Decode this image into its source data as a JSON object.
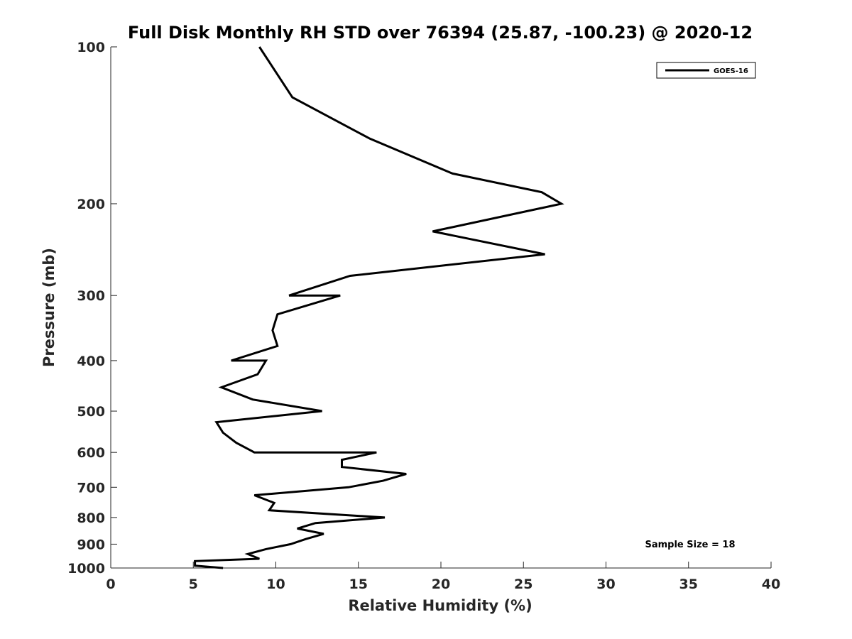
{
  "chart_data": {
    "type": "line",
    "title": "Full Disk Monthly RH STD over 76394 (25.87, -100.23) @ 2020-12",
    "xlabel": "Relative Humidity (%)",
    "ylabel": "Pressure (mb)",
    "xlim": [
      0,
      40
    ],
    "ylim": [
      100,
      1000
    ],
    "y_scale": "log",
    "y_reversed": true,
    "x_ticks": [
      "0",
      "5",
      "10",
      "15",
      "20",
      "25",
      "30",
      "35",
      "40"
    ],
    "y_ticks": [
      "100",
      "200",
      "300",
      "400",
      "500",
      "600",
      "700",
      "800",
      "900",
      "1000"
    ],
    "grid": false,
    "legend_position": "top-right",
    "annotation": "Sample Size = 18",
    "series": [
      {
        "name": "GOES-16",
        "color": "#000000",
        "points": [
          [
            9.0,
            100
          ],
          [
            11.0,
            125
          ],
          [
            15.7,
            150
          ],
          [
            20.7,
            175
          ],
          [
            26.1,
            190
          ],
          [
            27.3,
            200
          ],
          [
            19.5,
            226
          ],
          [
            26.3,
            250
          ],
          [
            14.5,
            275
          ],
          [
            10.8,
            300
          ],
          [
            13.9,
            300
          ],
          [
            10.1,
            326
          ],
          [
            9.8,
            350
          ],
          [
            10.1,
            375
          ],
          [
            7.3,
            400
          ],
          [
            9.4,
            400
          ],
          [
            8.9,
            425
          ],
          [
            6.7,
            450
          ],
          [
            8.6,
            475
          ],
          [
            12.8,
            500
          ],
          [
            6.4,
            525
          ],
          [
            6.8,
            550
          ],
          [
            7.6,
            575
          ],
          [
            8.7,
            600
          ],
          [
            16.1,
            600
          ],
          [
            14.0,
            620
          ],
          [
            14.0,
            640
          ],
          [
            17.9,
            660
          ],
          [
            16.5,
            680
          ],
          [
            14.4,
            700
          ],
          [
            8.7,
            725
          ],
          [
            9.9,
            750
          ],
          [
            9.6,
            775
          ],
          [
            16.6,
            800
          ],
          [
            12.4,
            820
          ],
          [
            11.3,
            840
          ],
          [
            12.9,
            860
          ],
          [
            11.8,
            880
          ],
          [
            10.9,
            900
          ],
          [
            9.4,
            920
          ],
          [
            8.3,
            940
          ],
          [
            9.0,
            960
          ],
          [
            5.1,
            970
          ],
          [
            5.1,
            990
          ],
          [
            6.8,
            1000
          ]
        ]
      }
    ]
  }
}
